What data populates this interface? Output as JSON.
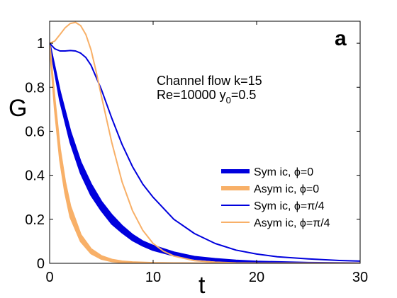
{
  "chart_data": {
    "type": "line",
    "panel_label": "a",
    "xlabel": "t",
    "ylabel": "G",
    "xlim": [
      0,
      30
    ],
    "ylim": [
      0,
      1.1
    ],
    "x_ticks": [
      0,
      10,
      20,
      30
    ],
    "y_ticks": [
      0,
      0.2,
      0.4,
      0.6,
      0.8,
      1
    ],
    "x_tick_labels": [
      "0",
      "10",
      "20",
      "30"
    ],
    "y_tick_labels": [
      "0",
      "0.2",
      "0.4",
      "0.6",
      "0.8",
      "1"
    ],
    "annotation": {
      "line1": "Channel flow k=15",
      "line2_prefix": "Re=10000 y",
      "line2_sub": "0",
      "line2_suffix": "=0.5"
    },
    "legend_position": "lower-right",
    "grid": false,
    "series": [
      {
        "name": "Sym ic, ϕ=0",
        "color": "#0000dd",
        "style": "band",
        "x": [
          0,
          1,
          2,
          3,
          4,
          5,
          6,
          7,
          8,
          9,
          10,
          12,
          14,
          16,
          18,
          20,
          25,
          30
        ],
        "upper": [
          1.0,
          0.78,
          0.6,
          0.46,
          0.36,
          0.28,
          0.22,
          0.17,
          0.13,
          0.1,
          0.08,
          0.05,
          0.03,
          0.02,
          0.013,
          0.008,
          0.003,
          0.001
        ],
        "lower": [
          1.0,
          0.74,
          0.55,
          0.41,
          0.31,
          0.24,
          0.18,
          0.14,
          0.105,
          0.08,
          0.06,
          0.035,
          0.02,
          0.012,
          0.007,
          0.004,
          0.001,
          0.0
        ]
      },
      {
        "name": "Asym ic, ϕ=0",
        "color": "#f8b068",
        "style": "band",
        "x": [
          0,
          0.5,
          1,
          1.5,
          2,
          3,
          4,
          5,
          6,
          7,
          8,
          10,
          12,
          15,
          20,
          30
        ],
        "upper": [
          1.0,
          0.74,
          0.52,
          0.37,
          0.26,
          0.13,
          0.065,
          0.033,
          0.017,
          0.009,
          0.005,
          0.002,
          0.001,
          0.0,
          0.0,
          0.0
        ],
        "lower": [
          1.0,
          0.7,
          0.47,
          0.32,
          0.21,
          0.1,
          0.045,
          0.02,
          0.009,
          0.004,
          0.002,
          0.0,
          0.0,
          0.0,
          0.0,
          0.0
        ]
      },
      {
        "name": "Sym ic, ϕ=π/4",
        "color": "#0000dd",
        "style": "thin",
        "x": [
          0,
          0.5,
          1,
          1.5,
          2,
          2.5,
          3,
          3.5,
          4,
          5,
          6,
          7,
          8,
          9,
          10,
          12,
          14,
          16,
          18,
          20,
          22,
          25,
          28,
          30
        ],
        "y": [
          1.0,
          0.975,
          0.965,
          0.965,
          0.967,
          0.965,
          0.955,
          0.935,
          0.9,
          0.79,
          0.66,
          0.54,
          0.44,
          0.36,
          0.3,
          0.2,
          0.135,
          0.09,
          0.06,
          0.042,
          0.03,
          0.02,
          0.013,
          0.01
        ]
      },
      {
        "name": "Asym ic, ϕ=π/4",
        "color": "#f8b068",
        "style": "thin",
        "x": [
          0,
          0.5,
          1,
          1.5,
          2,
          2.5,
          3,
          3.5,
          4,
          4.5,
          5,
          6,
          7,
          8,
          9,
          10,
          11,
          12,
          14,
          16,
          18,
          20
        ],
        "y": [
          1.0,
          1.01,
          1.04,
          1.07,
          1.09,
          1.095,
          1.08,
          1.04,
          0.97,
          0.87,
          0.76,
          0.55,
          0.37,
          0.24,
          0.15,
          0.09,
          0.055,
          0.033,
          0.012,
          0.005,
          0.002,
          0.001
        ]
      }
    ]
  }
}
